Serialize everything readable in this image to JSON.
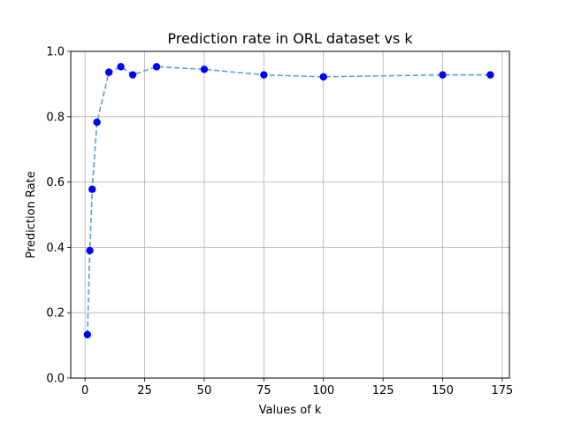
{
  "chart_data": {
    "type": "line",
    "title": "Prediction rate in ORL dataset vs k",
    "xlabel": "Values of k",
    "ylabel": "Prediction Rate",
    "xlim": [
      -6,
      178
    ],
    "ylim": [
      0,
      1.0
    ],
    "xticks": [
      0,
      25,
      50,
      75,
      100,
      125,
      150,
      175
    ],
    "yticks": [
      0.0,
      0.2,
      0.4,
      0.6,
      0.8,
      1.0
    ],
    "xtick_labels": [
      "0",
      "25",
      "50",
      "75",
      "100",
      "125",
      "150",
      "175"
    ],
    "ytick_labels": [
      "0.0",
      "0.2",
      "0.4",
      "0.6",
      "0.8",
      "1.0"
    ],
    "grid": true,
    "series": [
      {
        "x": [
          1,
          2,
          3,
          5,
          10,
          15,
          20,
          30,
          50,
          75,
          100,
          150,
          170
        ],
        "y": [
          0.133,
          0.39,
          0.578,
          0.783,
          0.936,
          0.953,
          0.928,
          0.953,
          0.945,
          0.928,
          0.922,
          0.928,
          0.928
        ],
        "line_color": "#5b9fcf",
        "marker_color": "#0000ff",
        "line_style": "dashed"
      }
    ]
  }
}
